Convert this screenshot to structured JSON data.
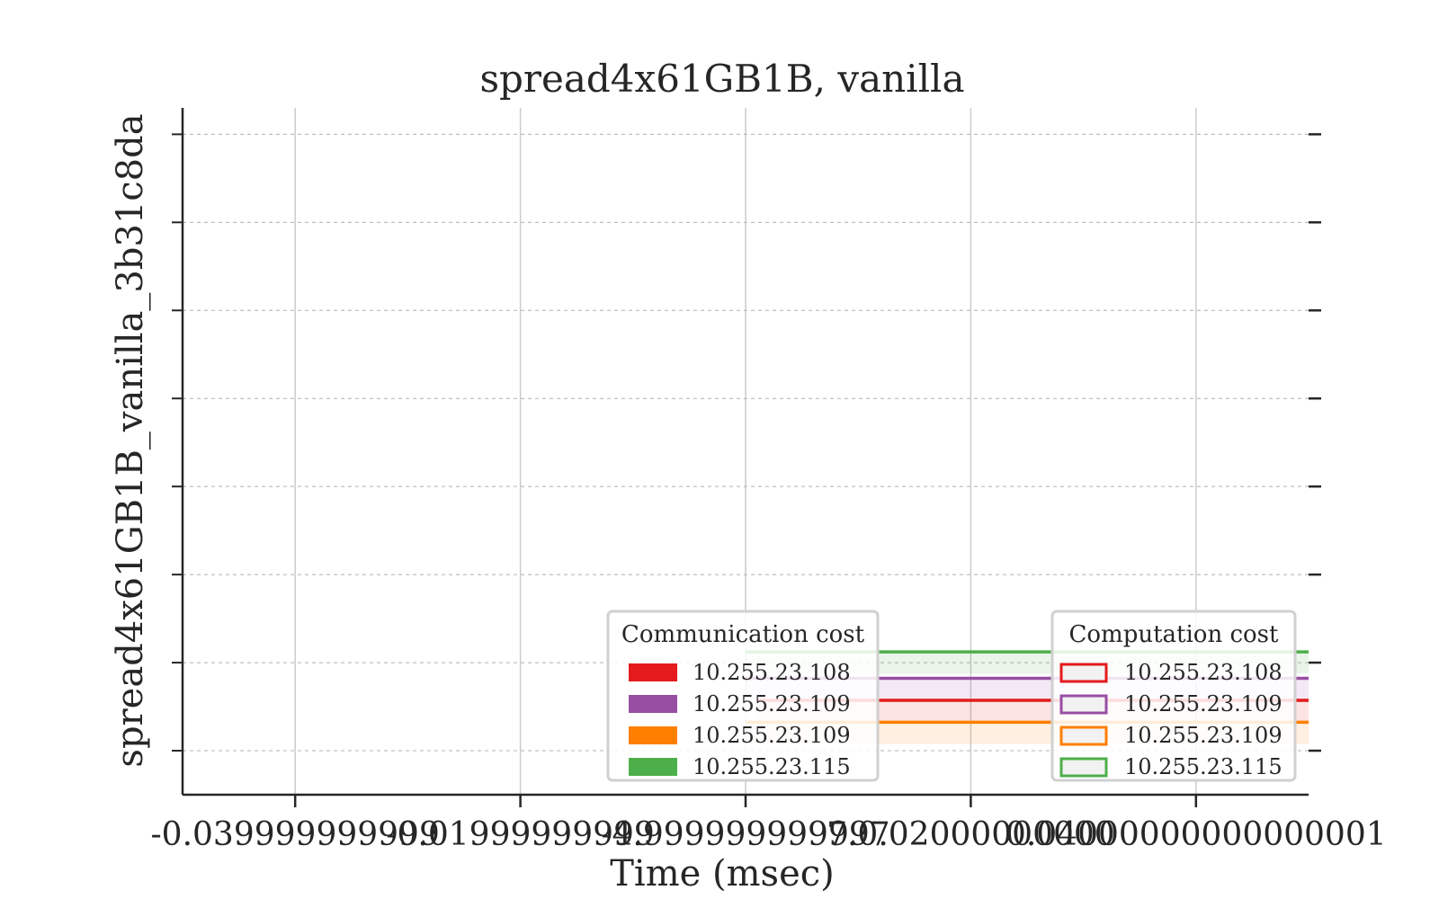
{
  "chart_data": {
    "type": "bar",
    "title": "spread4x61GB1B, vanilla",
    "xlabel": "Time (msec)",
    "ylabel": "spread4x61GB1B_vanilla_3b31c8da",
    "xlim": [
      -0.05,
      0.05
    ],
    "xticks": [
      -0.04,
      -0.02,
      0.0,
      0.02,
      0.04
    ],
    "xtick_labels": [
      "-0.039999999999",
      "-0.01999999999",
      "-4.999999999997",
      "7.0.02000000000",
      "0.04000000000000001"
    ],
    "ylim": [
      -0.5,
      7.3
    ],
    "yticks": [
      0,
      1,
      2,
      3,
      4,
      5,
      6,
      7
    ],
    "grid": {
      "x": true,
      "y": true
    },
    "legends": [
      {
        "title": "Communication cost",
        "placement": "lower-center-right",
        "style": "filled",
        "entries": [
          {
            "label": "10.255.23.108",
            "color": "#e41a1c"
          },
          {
            "label": "10.255.23.109",
            "color": "#984ea3"
          },
          {
            "label": "10.255.23.109",
            "color": "#ff7f00"
          },
          {
            "label": "10.255.23.115",
            "color": "#4daf4a"
          }
        ]
      },
      {
        "title": "Computation cost",
        "placement": "lower-right",
        "style": "outline",
        "entries": [
          {
            "label": "10.255.23.108",
            "color": "#e41a1c"
          },
          {
            "label": "10.255.23.109",
            "color": "#984ea3"
          },
          {
            "label": "10.255.23.109",
            "color": "#ff7f00"
          },
          {
            "label": "10.255.23.115",
            "color": "#4daf4a"
          }
        ]
      }
    ],
    "series": [
      {
        "row": 1,
        "computation": {
          "color": "#4daf4a",
          "x_start": 0.0,
          "x_end": 0.05
        },
        "communication": {
          "color": "#4daf4a",
          "x_start": 0.0,
          "x_end": 0.05
        }
      },
      {
        "row": 0.7,
        "computation": {
          "color": "#984ea3",
          "x_start": 0.0,
          "x_end": 0.05
        },
        "communication": {
          "color": "#984ea3",
          "x_start": 0.0,
          "x_end": 0.05
        }
      },
      {
        "row": 0.45,
        "computation": {
          "color": "#e41a1c",
          "x_start": 0.001,
          "x_end": 0.05
        },
        "communication": {
          "color": "#e41a1c",
          "x_start": 0.001,
          "x_end": 0.05
        }
      },
      {
        "row": 0.2,
        "computation": {
          "color": "#ff7f00",
          "x_start": 0.0,
          "x_end": 0.05
        },
        "communication": {
          "color": "#ff7f00",
          "x_start": 0.0,
          "x_end": 0.05
        }
      }
    ]
  }
}
